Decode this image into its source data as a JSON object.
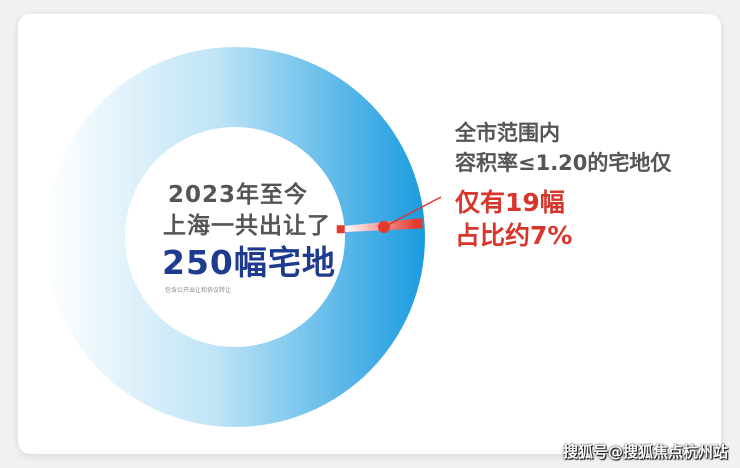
{
  "chart_data": {
    "type": "pie",
    "donut": true,
    "total": 250,
    "highlight": {
      "value": 19,
      "percent": 7
    },
    "colors": {
      "ring_start": "#ffffff",
      "ring_end": "#1a9be0",
      "highlight": "#e53a2f"
    }
  },
  "center": {
    "line1": "2023年至今",
    "line2": "上海一共出让了",
    "line3": "250幅宅地",
    "note": "包含公开出让和协议转让"
  },
  "callout": {
    "line1": "全市范围内",
    "line2": "容积率≤1.20的宅地仅",
    "line3": "仅有19幅",
    "line4": "占比约7%"
  },
  "watermark": "搜狐号@搜狐焦点杭州站"
}
